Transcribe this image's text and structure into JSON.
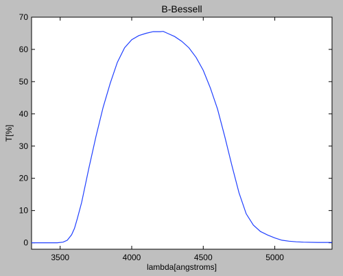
{
  "chart_data": {
    "type": "line",
    "title": "B-Bessell",
    "xlabel": "lambda[angstroms]",
    "ylabel": "T[%]",
    "xlim": [
      3300,
      5400
    ],
    "ylim": [
      -2,
      70
    ],
    "xticks": [
      3500,
      4000,
      4500,
      5000
    ],
    "yticks": [
      0,
      10,
      20,
      30,
      40,
      50,
      60,
      70
    ],
    "grid": false,
    "line_color": "#1f3fff",
    "series": [
      {
        "x": [
          3300,
          3400,
          3480,
          3520,
          3550,
          3580,
          3600,
          3620,
          3650,
          3700,
          3750,
          3800,
          3850,
          3900,
          3950,
          4000,
          4050,
          4100,
          4150,
          4200,
          4220,
          4250,
          4300,
          4350,
          4400,
          4450,
          4500,
          4550,
          4600,
          4650,
          4700,
          4750,
          4800,
          4850,
          4900,
          4950,
          5000,
          5050,
          5100,
          5150,
          5200,
          5300,
          5400
        ],
        "y": [
          0,
          0,
          0,
          0.2,
          0.8,
          2.5,
          4.5,
          7.5,
          12.5,
          23,
          33,
          42,
          49.5,
          56,
          60.5,
          63,
          64.3,
          65,
          65.5,
          65.5,
          65.6,
          65,
          64,
          62.5,
          60.5,
          57.5,
          53.5,
          48,
          41.5,
          33,
          24,
          15.5,
          9,
          5.5,
          3.5,
          2.4,
          1.5,
          0.8,
          0.5,
          0.3,
          0.2,
          0.1,
          0.1
        ]
      }
    ]
  }
}
